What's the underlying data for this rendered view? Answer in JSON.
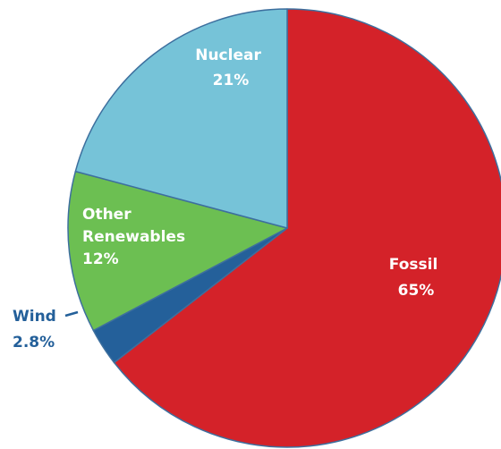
{
  "chart_data": {
    "type": "pie",
    "slices": [
      {
        "label": "Fossil",
        "value": 65,
        "value_label": "65%",
        "color": "#d42229",
        "text_color": "#ffffff"
      },
      {
        "label": "Wind",
        "value": 2.8,
        "value_label": "2.8%",
        "color": "#24609a",
        "text_color": "#24609a"
      },
      {
        "label": "Other Renewables",
        "value": 12,
        "value_label": "12%",
        "color": "#6cbf52",
        "text_color": "#ffffff"
      },
      {
        "label": "Nuclear",
        "value": 21,
        "value_label": "21%",
        "color": "#76c3d8",
        "text_color": "#ffffff"
      }
    ],
    "start_angle_deg": 0,
    "direction": "clockwise",
    "legend": "none"
  }
}
